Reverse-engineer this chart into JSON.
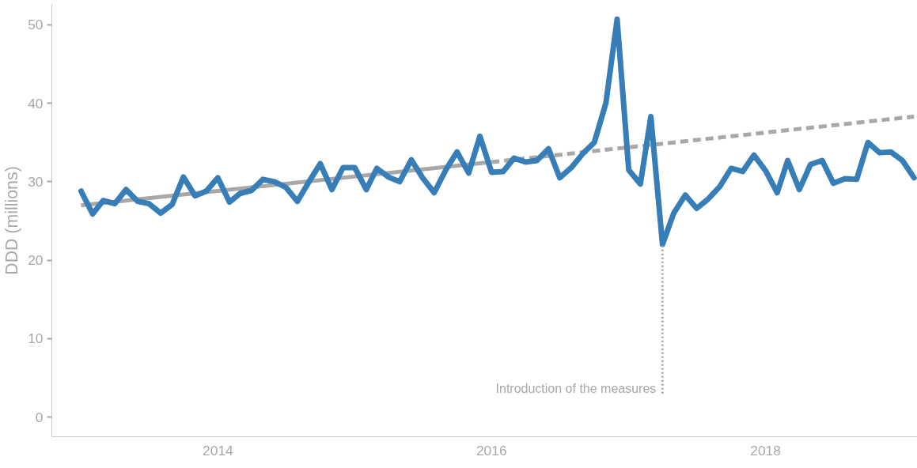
{
  "chart_data": {
    "type": "line",
    "ylabel": "DDD (millions)",
    "x": [
      "2013-01",
      "2013-02",
      "2013-03",
      "2013-04",
      "2013-05",
      "2013-06",
      "2013-07",
      "2013-08",
      "2013-09",
      "2013-10",
      "2013-11",
      "2013-12",
      "2014-01",
      "2014-02",
      "2014-03",
      "2014-04",
      "2014-05",
      "2014-06",
      "2014-07",
      "2014-08",
      "2014-09",
      "2014-10",
      "2014-11",
      "2014-12",
      "2015-01",
      "2015-02",
      "2015-03",
      "2015-04",
      "2015-05",
      "2015-06",
      "2015-07",
      "2015-08",
      "2015-09",
      "2015-10",
      "2015-11",
      "2015-12",
      "2016-01",
      "2016-02",
      "2016-03",
      "2016-04",
      "2016-05",
      "2016-06",
      "2016-07",
      "2016-08",
      "2016-09",
      "2016-10",
      "2016-11",
      "2016-12",
      "2017-01",
      "2017-02",
      "2017-03",
      "2017-04",
      "2017-05",
      "2017-06",
      "2017-07",
      "2017-08",
      "2017-09",
      "2017-10",
      "2017-11",
      "2017-12",
      "2018-01",
      "2018-02",
      "2018-03",
      "2018-04",
      "2018-05",
      "2018-06",
      "2018-07",
      "2018-08",
      "2018-09",
      "2018-10",
      "2018-11",
      "2018-12",
      "2019-01",
      "2019-02"
    ],
    "series": [
      {
        "color": "#a8a8a8",
        "line_style": "solid",
        "x": [
          "2013-01",
          "2016-01"
        ],
        "values": [
          27.0,
          32.5
        ]
      },
      {
        "color": "#a8a8a8",
        "line_style": "dashed",
        "x": [
          "2016-01",
          "2019-02"
        ],
        "values": [
          32.5,
          38.3
        ]
      },
      {
        "color": "#377eb8",
        "line_style": "solid",
        "values": [
          28.8,
          25.9,
          27.6,
          27.2,
          29.0,
          27.5,
          27.2,
          26.0,
          27.1,
          30.6,
          28.2,
          28.8,
          30.5,
          27.4,
          28.5,
          28.9,
          30.3,
          30.0,
          29.3,
          27.5,
          30.0,
          32.3,
          29.0,
          31.8,
          31.8,
          29.0,
          31.7,
          30.6,
          30.0,
          32.8,
          30.5,
          28.6,
          31.5,
          33.8,
          31.1,
          35.8,
          31.2,
          31.3,
          33.0,
          32.5,
          32.7,
          34.2,
          30.5,
          31.8,
          33.6,
          35.0,
          40.0,
          50.7,
          31.5,
          29.7,
          38.3,
          22.0,
          26.0,
          28.3,
          26.6,
          27.8,
          29.4,
          31.7,
          31.3,
          33.4,
          31.4,
          28.6,
          32.7,
          29.0,
          32.2,
          32.7,
          29.8,
          30.4,
          30.3,
          35.0,
          33.7,
          33.8,
          32.7,
          30.5
        ]
      }
    ],
    "ref_lines": [
      {
        "axis": "x",
        "value": "2017-04",
        "label": "Introduction of the measures",
        "color": "#a8a8a8",
        "line_style": "dotted"
      }
    ],
    "xticks": [
      {
        "value": "2014-01",
        "label": "2014"
      },
      {
        "value": "2016-01",
        "label": "2016"
      },
      {
        "value": "2018-01",
        "label": "2018"
      }
    ],
    "xlim": [
      "2012-10-15",
      "2019-02-10"
    ],
    "ylim": [
      -2.5,
      52.6
    ],
    "yticks": [
      0,
      10,
      20,
      30,
      40,
      50
    ],
    "grid": false
  }
}
